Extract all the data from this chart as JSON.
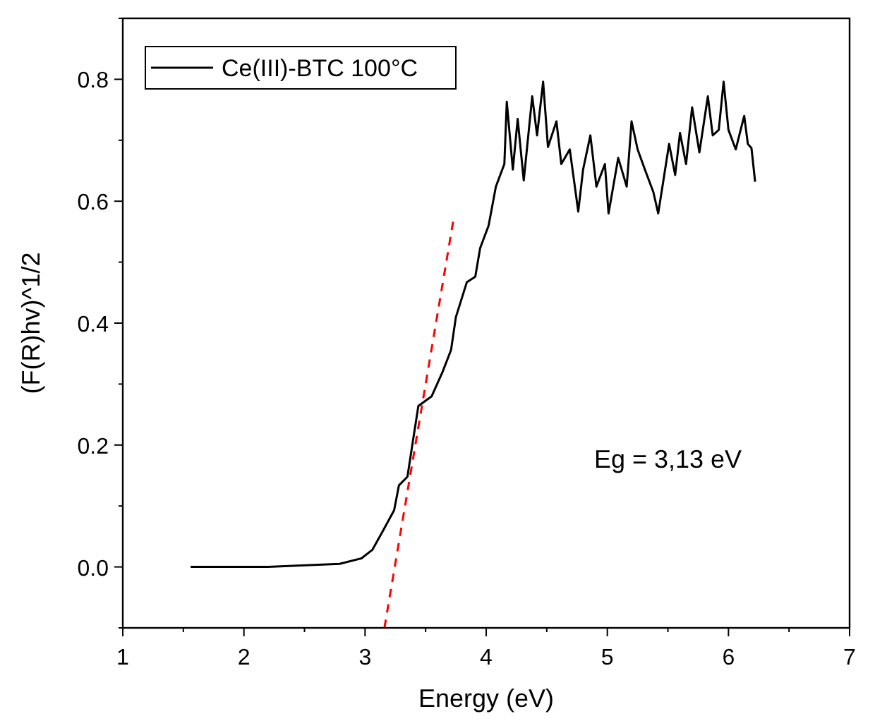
{
  "chart_data": {
    "type": "line",
    "xlabel": "Energy (eV)",
    "ylabel": "(F(R)hv)^1/2",
    "annotations": [
      "Eg = 3,13 eV"
    ],
    "xlim": [
      1,
      7
    ],
    "xticks": [
      1,
      {
        "value": 1.5,
        "label": null
      },
      2,
      {
        "value": 2.5,
        "label": null
      },
      3,
      {
        "value": 3.5,
        "label": null
      },
      4,
      {
        "value": 4.5,
        "label": null
      },
      5,
      {
        "value": 5.5,
        "label": null
      },
      6,
      {
        "value": 6.5,
        "label": null
      },
      7
    ],
    "ylim": [
      -0.1,
      0.9
    ],
    "yticks": [
      {
        "value": -0.1,
        "label": null
      },
      {
        "value": 0,
        "label": "0.0"
      },
      {
        "value": 0.1,
        "label": null
      },
      {
        "value": 0.2,
        "label": "0.2"
      },
      {
        "value": 0.3,
        "label": null
      },
      {
        "value": 0.4,
        "label": "0.4"
      },
      {
        "value": 0.5,
        "label": null
      },
      {
        "value": 0.6,
        "label": "0.6"
      },
      {
        "value": 0.7,
        "label": null
      },
      {
        "value": 0.8,
        "label": "0.8"
      },
      {
        "value": 0.9,
        "label": null
      }
    ],
    "legend": "top left",
    "grid": false,
    "series": [
      {
        "name": "Ce(III)-BTC 100°C",
        "color": "#000000",
        "line_style": "solid",
        "x": [
          1.56,
          2.2,
          2.79,
          2.97,
          3.06,
          3.15,
          3.24,
          3.28,
          3.35,
          3.39,
          3.44,
          3.55,
          3.64,
          3.71,
          3.75,
          3.84,
          3.91,
          3.95,
          4.02,
          4.08,
          4.15,
          4.17,
          4.22,
          4.26,
          4.31,
          4.38,
          4.42,
          4.47,
          4.51,
          4.58,
          4.62,
          4.69,
          4.76,
          4.8,
          4.86,
          4.91,
          4.98,
          5.01,
          5.09,
          5.16,
          5.2,
          5.25,
          5.31,
          5.38,
          5.42,
          5.47,
          5.51,
          5.56,
          5.6,
          5.65,
          5.7,
          5.76,
          5.83,
          5.87,
          5.92,
          5.96,
          6.0,
          6.06,
          6.13,
          6.16,
          6.19,
          6.22
        ],
        "values": [
          0,
          0,
          0.005,
          0.014,
          0.028,
          0.06,
          0.093,
          0.134,
          0.148,
          0.2,
          0.264,
          0.28,
          0.32,
          0.356,
          0.41,
          0.467,
          0.476,
          0.523,
          0.56,
          0.624,
          0.661,
          0.763,
          0.652,
          0.735,
          0.634,
          0.772,
          0.708,
          0.796,
          0.689,
          0.731,
          0.661,
          0.685,
          0.583,
          0.652,
          0.708,
          0.624,
          0.661,
          0.58,
          0.671,
          0.624,
          0.731,
          0.685,
          0.652,
          0.615,
          0.58,
          0.643,
          0.694,
          0.643,
          0.712,
          0.661,
          0.754,
          0.68,
          0.772,
          0.708,
          0.717,
          0.796,
          0.717,
          0.685,
          0.74,
          0.694,
          0.687,
          0.632
        ]
      },
      {
        "type": "line",
        "color": "#ff0000",
        "line_style": "dashed",
        "x": [
          3.16,
          3.73
        ],
        "values": [
          -0.1,
          0.57
        ]
      }
    ]
  }
}
